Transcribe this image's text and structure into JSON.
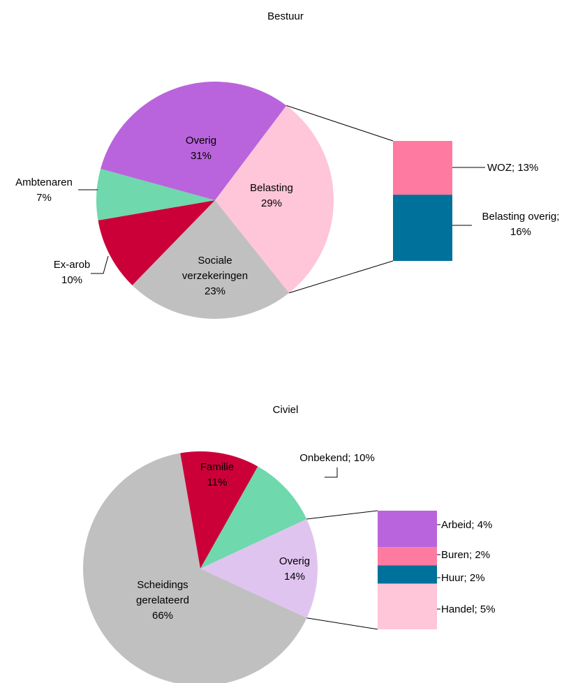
{
  "chart_data": [
    {
      "type": "pie",
      "title": "Bestuur",
      "values": [
        29,
        23,
        10,
        7,
        31
      ],
      "value_labels": [
        "Belasting\n29%",
        "Sociale\nverzekeringen\n23%",
        "Ex-arob\n10%",
        "Ambtenaren\n7%",
        "Overig\n31%"
      ],
      "colors": [
        "#ffc5d8",
        "#c0c0c0",
        "#cc0039",
        "#6fd8ad",
        "#b964dc"
      ],
      "breakout": {
        "type": "stacked-bar",
        "values": [
          13,
          16
        ],
        "value_labels": [
          "WOZ; 13%",
          "Belasting overig;\n16%"
        ],
        "colors": [
          "#ff7aa0",
          "#00719a"
        ]
      }
    },
    {
      "type": "pie",
      "title": "Civiel",
      "values": [
        14,
        66,
        11,
        10
      ],
      "value_labels": [
        "Overig\n14%",
        "Scheidings\ngerelateerd\n66%",
        "Familie\n11%",
        "Onbekend; 10%"
      ],
      "colors": [
        "#e0c4f0",
        "#c0c0c0",
        "#cc0039",
        "#6fd8ad"
      ],
      "breakout": {
        "type": "stacked-bar",
        "values": [
          4,
          2,
          2,
          5
        ],
        "value_labels": [
          "Arbeid; 4%",
          "Buren; 2%",
          "Huur; 2%",
          "Handel; 5%"
        ],
        "colors": [
          "#b964dc",
          "#ff7aa0",
          "#00719a",
          "#ffc5d8"
        ]
      }
    }
  ]
}
